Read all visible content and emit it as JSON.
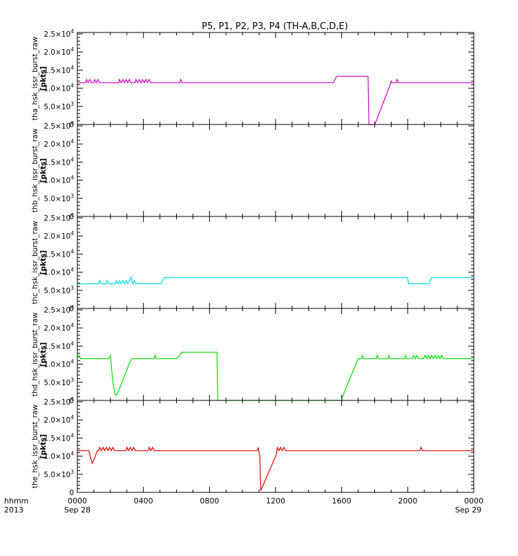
{
  "chart_data": {
    "type": "line",
    "title": "P5, P1, P2, P3, P4 (TH-A,B,C,D,E)",
    "x_ticks": [
      "0000",
      "0400",
      "0800",
      "1200",
      "1600",
      "2000",
      "0000"
    ],
    "x_dates": {
      "first": "Sep 28",
      "last": "Sep 29"
    },
    "x_label": {
      "line1": "hhmm",
      "line2": "2013"
    },
    "xlim_hours": [
      0,
      24
    ],
    "ylim": [
      0,
      25000
    ],
    "y_ticks": [
      {
        "value": 0,
        "mantissa": "0",
        "exponent": ""
      },
      {
        "value": 5000,
        "mantissa": "5.0×10",
        "exponent": "3"
      },
      {
        "value": 10000,
        "mantissa": "1.0×10",
        "exponent": "4"
      },
      {
        "value": 15000,
        "mantissa": "1.5×10",
        "exponent": "4"
      },
      {
        "value": 20000,
        "mantissa": "2.0×10",
        "exponent": "4"
      },
      {
        "value": 25000,
        "mantissa": "2.5×10",
        "exponent": "4"
      }
    ],
    "y_unit": "[pkts]",
    "grid": false,
    "panels": [
      {
        "ylabel": "tha_hsk_issr_burst_raw",
        "color": "#cc00cc",
        "points": [
          [
            0,
            11500
          ],
          [
            0.5,
            11500
          ],
          [
            0.55,
            12400
          ],
          [
            0.65,
            11500
          ],
          [
            0.75,
            12400
          ],
          [
            0.85,
            11500
          ],
          [
            1.0,
            11500
          ],
          [
            1.05,
            12400
          ],
          [
            1.15,
            11500
          ],
          [
            1.25,
            12400
          ],
          [
            1.35,
            11500
          ],
          [
            2.5,
            11500
          ],
          [
            2.55,
            12400
          ],
          [
            2.65,
            11500
          ],
          [
            2.75,
            12400
          ],
          [
            2.85,
            11500
          ],
          [
            2.95,
            12400
          ],
          [
            3.05,
            11500
          ],
          [
            3.15,
            12400
          ],
          [
            3.25,
            11500
          ],
          [
            3.5,
            11500
          ],
          [
            3.55,
            12400
          ],
          [
            3.65,
            11500
          ],
          [
            3.75,
            12400
          ],
          [
            3.85,
            11500
          ],
          [
            3.95,
            12400
          ],
          [
            4.05,
            11500
          ],
          [
            4.15,
            12400
          ],
          [
            4.25,
            11500
          ],
          [
            4.35,
            12400
          ],
          [
            4.45,
            11500
          ],
          [
            6.2,
            11500
          ],
          [
            6.25,
            12400
          ],
          [
            6.35,
            11500
          ],
          [
            15.5,
            11500
          ],
          [
            15.6,
            12500
          ],
          [
            15.7,
            13300
          ],
          [
            17.6,
            13300
          ],
          [
            17.65,
            0
          ],
          [
            18.0,
            0
          ],
          [
            18.05,
            500
          ],
          [
            18.9,
            10500
          ],
          [
            19.0,
            12000
          ],
          [
            19.05,
            11500
          ],
          [
            19.3,
            11500
          ],
          [
            19.35,
            12400
          ],
          [
            19.45,
            11500
          ],
          [
            24,
            11500
          ]
        ]
      },
      {
        "ylabel": "thb_hsk_issr_burst_raw",
        "color": "#000000",
        "points": []
      },
      {
        "ylabel": "thc_hsk_issr_burst_raw",
        "color": "#00dddd",
        "points": [
          [
            0,
            6700
          ],
          [
            0.4,
            6800
          ],
          [
            1.3,
            6800
          ],
          [
            1.35,
            7700
          ],
          [
            1.45,
            6800
          ],
          [
            1.75,
            6800
          ],
          [
            1.8,
            7700
          ],
          [
            1.9,
            6800
          ],
          [
            2.3,
            6800
          ],
          [
            2.35,
            7700
          ],
          [
            2.45,
            6800
          ],
          [
            2.55,
            7700
          ],
          [
            2.65,
            6800
          ],
          [
            2.75,
            7700
          ],
          [
            2.85,
            6800
          ],
          [
            2.95,
            7700
          ],
          [
            3.05,
            6800
          ],
          [
            3.15,
            7700
          ],
          [
            3.25,
            8600
          ],
          [
            3.35,
            6800
          ],
          [
            3.45,
            7700
          ],
          [
            3.55,
            6800
          ],
          [
            5.1,
            6800
          ],
          [
            5.15,
            7700
          ],
          [
            5.25,
            8500
          ],
          [
            20.0,
            8500
          ],
          [
            20.05,
            6800
          ],
          [
            21.3,
            6800
          ],
          [
            21.35,
            7700
          ],
          [
            21.45,
            8500
          ],
          [
            24,
            8500
          ]
        ]
      },
      {
        "ylabel": "thd_hsk_issr_burst_raw",
        "color": "#00dd00",
        "points": [
          [
            0,
            11500
          ],
          [
            0.1,
            12400
          ],
          [
            0.2,
            11500
          ],
          [
            1.9,
            11500
          ],
          [
            2.0,
            12400
          ],
          [
            2.15,
            5000
          ],
          [
            2.3,
            1500
          ],
          [
            2.4,
            1500
          ],
          [
            3.15,
            10200
          ],
          [
            3.3,
            11500
          ],
          [
            4.65,
            11500
          ],
          [
            4.7,
            12400
          ],
          [
            4.8,
            11500
          ],
          [
            6.0,
            11500
          ],
          [
            6.2,
            12400
          ],
          [
            6.3,
            13300
          ],
          [
            8.45,
            13300
          ],
          [
            8.5,
            0
          ],
          [
            16.0,
            0
          ],
          [
            16.05,
            1000
          ],
          [
            16.9,
            10500
          ],
          [
            17.0,
            11500
          ],
          [
            17.2,
            11500
          ],
          [
            17.25,
            12400
          ],
          [
            17.35,
            11500
          ],
          [
            18.1,
            11500
          ],
          [
            18.15,
            12400
          ],
          [
            18.25,
            11500
          ],
          [
            18.8,
            11500
          ],
          [
            18.85,
            12400
          ],
          [
            18.95,
            11500
          ],
          [
            19.8,
            11500
          ],
          [
            19.85,
            12400
          ],
          [
            19.95,
            11500
          ],
          [
            20.3,
            11500
          ],
          [
            20.35,
            12400
          ],
          [
            20.45,
            11500
          ],
          [
            20.55,
            12400
          ],
          [
            20.65,
            11500
          ],
          [
            20.95,
            11500
          ],
          [
            21.05,
            12400
          ],
          [
            21.15,
            11500
          ],
          [
            21.25,
            12400
          ],
          [
            21.35,
            11500
          ],
          [
            21.45,
            12400
          ],
          [
            21.55,
            11500
          ],
          [
            21.65,
            12400
          ],
          [
            21.75,
            11500
          ],
          [
            21.85,
            12400
          ],
          [
            21.95,
            11500
          ],
          [
            22.05,
            12400
          ],
          [
            22.15,
            11500
          ],
          [
            24,
            11500
          ]
        ]
      },
      {
        "ylabel": "the_hsk_issr_burst_raw",
        "color": "#dd0000",
        "points": [
          [
            0,
            11500
          ],
          [
            0.7,
            11500
          ],
          [
            0.75,
            10500
          ],
          [
            0.9,
            8000
          ],
          [
            1.05,
            9500
          ],
          [
            1.2,
            11500
          ],
          [
            1.3,
            11500
          ],
          [
            1.35,
            12400
          ],
          [
            1.45,
            11500
          ],
          [
            1.55,
            12400
          ],
          [
            1.65,
            11500
          ],
          [
            1.75,
            12400
          ],
          [
            1.85,
            11500
          ],
          [
            1.95,
            12400
          ],
          [
            2.05,
            11500
          ],
          [
            2.15,
            12400
          ],
          [
            2.25,
            11500
          ],
          [
            2.95,
            11500
          ],
          [
            3.0,
            12400
          ],
          [
            3.1,
            11500
          ],
          [
            3.2,
            12400
          ],
          [
            3.3,
            11500
          ],
          [
            3.4,
            12400
          ],
          [
            3.5,
            11500
          ],
          [
            4.3,
            11500
          ],
          [
            4.35,
            12400
          ],
          [
            4.45,
            11500
          ],
          [
            4.55,
            12400
          ],
          [
            4.65,
            11500
          ],
          [
            10.9,
            11500
          ],
          [
            10.95,
            12400
          ],
          [
            11.05,
            9500
          ],
          [
            11.1,
            500
          ],
          [
            11.2,
            1500
          ],
          [
            12.05,
            10500
          ],
          [
            12.1,
            12400
          ],
          [
            12.2,
            11500
          ],
          [
            12.3,
            12400
          ],
          [
            12.4,
            11500
          ],
          [
            12.5,
            12400
          ],
          [
            12.6,
            11500
          ],
          [
            20.75,
            11500
          ],
          [
            20.8,
            12400
          ],
          [
            20.9,
            11500
          ],
          [
            24,
            11500
          ]
        ]
      }
    ]
  }
}
